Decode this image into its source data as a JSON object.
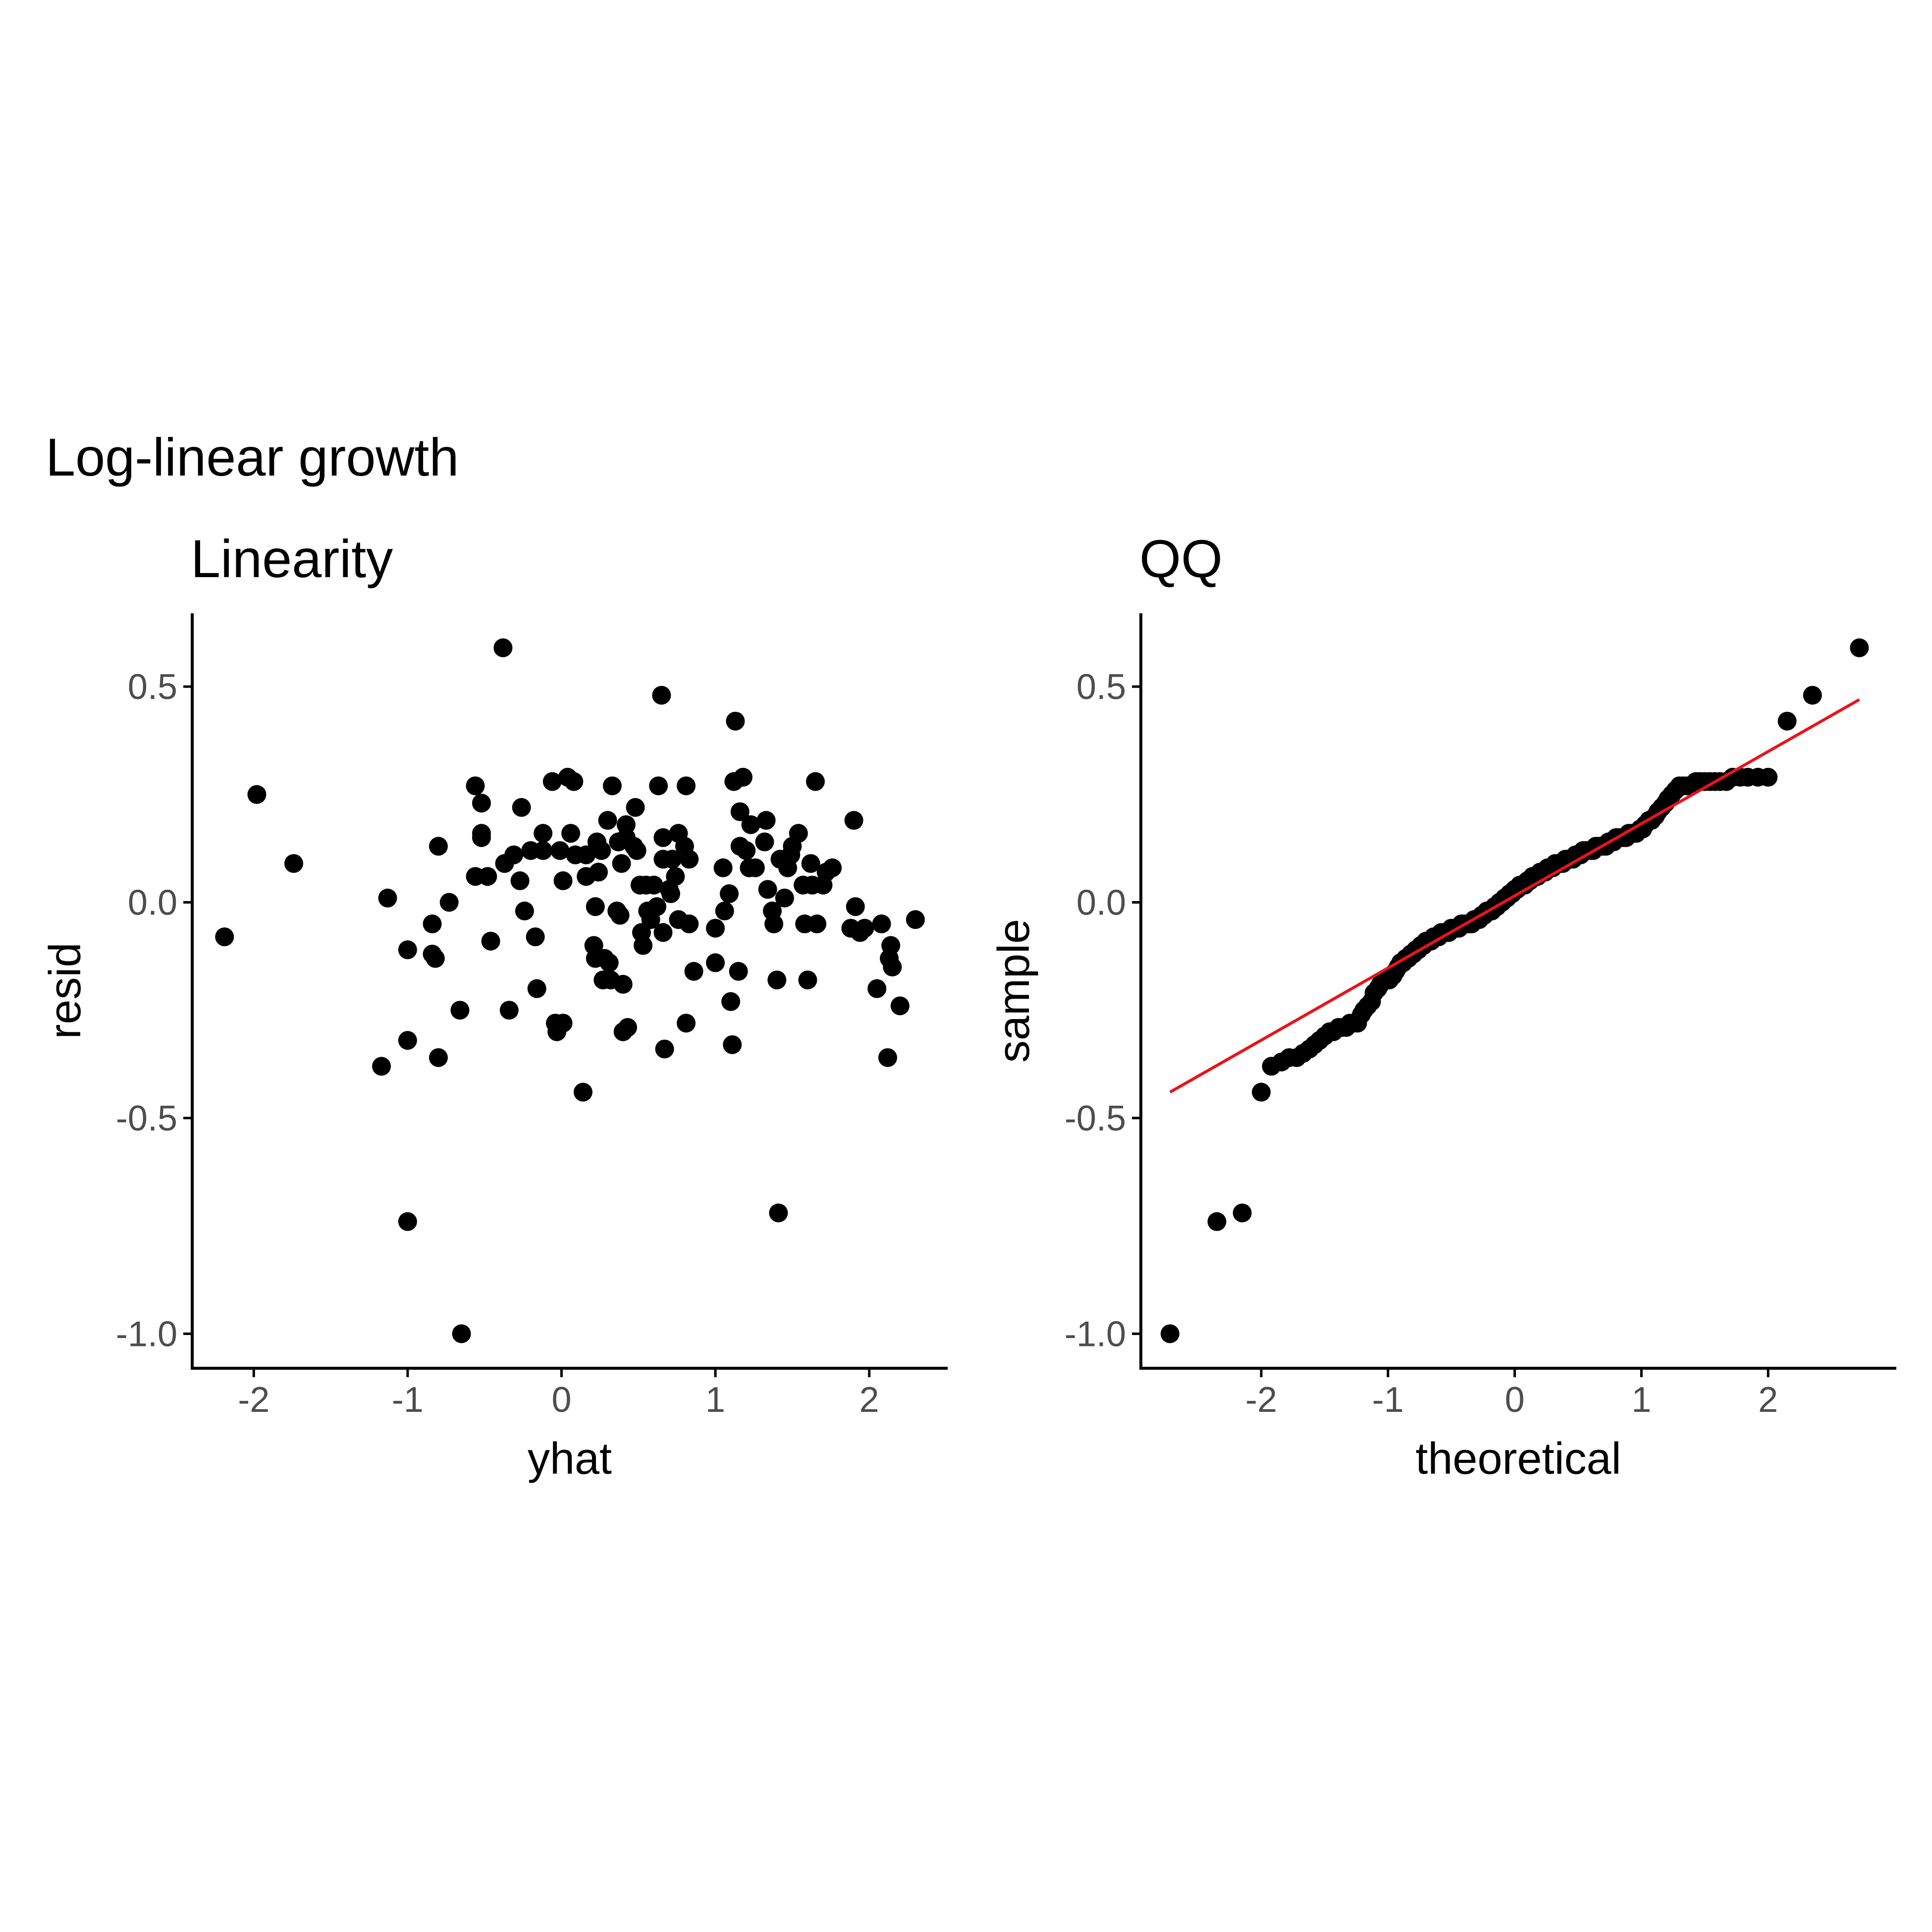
{
  "title": "Log-linear growth",
  "chart_data": [
    {
      "type": "scatter",
      "title": "Linearity",
      "xlabel": "yhat",
      "ylabel": "resid",
      "xlim": [
        -2.4,
        2.5
      ],
      "ylim": [
        -1.08,
        0.67
      ],
      "xticks": [
        "-2",
        "-1",
        "0",
        "1",
        "2"
      ],
      "yticks": [
        "-1.0",
        "-0.5",
        "0.0",
        "0.5"
      ],
      "point_color": "#000000",
      "points": [
        [
          -2.19,
          -0.08
        ],
        [
          -1.98,
          0.25
        ],
        [
          -1.74,
          0.09
        ],
        [
          -1.17,
          -0.38
        ],
        [
          -1.13,
          0.01
        ],
        [
          -1.0,
          -0.32
        ],
        [
          -1.0,
          -0.11
        ],
        [
          -1.0,
          -0.74
        ],
        [
          -0.84,
          -0.05
        ],
        [
          -0.84,
          -0.12
        ],
        [
          -0.82,
          -0.13
        ],
        [
          -0.8,
          -0.36
        ],
        [
          -0.8,
          0.13
        ],
        [
          -0.73,
          0.0
        ],
        [
          -0.66,
          -0.25
        ],
        [
          -0.65,
          -1.0
        ],
        [
          -0.56,
          0.06
        ],
        [
          -0.56,
          0.27
        ],
        [
          -0.52,
          0.23
        ],
        [
          -0.52,
          0.16
        ],
        [
          -0.52,
          0.15
        ],
        [
          -0.48,
          0.06
        ],
        [
          -0.46,
          -0.09
        ],
        [
          -0.38,
          0.59
        ],
        [
          -0.37,
          0.09
        ],
        [
          -0.34,
          -0.25
        ],
        [
          -0.31,
          0.11
        ],
        [
          -0.27,
          0.05
        ],
        [
          -0.26,
          0.22
        ],
        [
          -0.24,
          -0.02
        ],
        [
          -0.2,
          0.12
        ],
        [
          -0.17,
          -0.08
        ],
        [
          -0.16,
          -0.2
        ],
        [
          -0.12,
          0.16
        ],
        [
          -0.12,
          0.12
        ],
        [
          -0.06,
          0.28
        ],
        [
          -0.04,
          -0.28
        ],
        [
          -0.03,
          -0.3
        ],
        [
          -0.01,
          0.12
        ],
        [
          0.01,
          0.05
        ],
        [
          0.01,
          -0.28
        ],
        [
          0.04,
          0.29
        ],
        [
          0.06,
          0.16
        ],
        [
          0.08,
          0.28
        ],
        [
          0.09,
          0.11
        ],
        [
          0.14,
          -0.44
        ],
        [
          0.16,
          0.11
        ],
        [
          0.16,
          0.06
        ],
        [
          0.21,
          -0.1
        ],
        [
          0.22,
          -0.13
        ],
        [
          0.22,
          -0.01
        ],
        [
          0.23,
          0.14
        ],
        [
          0.24,
          0.07
        ],
        [
          0.26,
          0.12
        ],
        [
          0.27,
          -0.18
        ],
        [
          0.28,
          -0.13
        ],
        [
          0.3,
          0.19
        ],
        [
          0.31,
          -0.14
        ],
        [
          0.32,
          -0.18
        ],
        [
          0.33,
          0.27
        ],
        [
          0.36,
          -0.02
        ],
        [
          0.37,
          0.14
        ],
        [
          0.38,
          -0.03
        ],
        [
          0.38,
          -0.03
        ],
        [
          0.39,
          0.09
        ],
        [
          0.4,
          -0.3
        ],
        [
          0.4,
          -0.19
        ],
        [
          0.42,
          0.15
        ],
        [
          0.42,
          0.18
        ],
        [
          0.43,
          -0.29
        ],
        [
          0.47,
          0.13
        ],
        [
          0.48,
          0.22
        ],
        [
          0.49,
          0.12
        ],
        [
          0.51,
          0.04
        ],
        [
          0.52,
          -0.07
        ],
        [
          0.53,
          -0.1
        ],
        [
          0.55,
          0.04
        ],
        [
          0.56,
          -0.02
        ],
        [
          0.57,
          -0.02
        ],
        [
          0.58,
          -0.04
        ],
        [
          0.6,
          0.04
        ],
        [
          0.62,
          -0.01
        ],
        [
          0.63,
          0.27
        ],
        [
          0.65,
          0.48
        ],
        [
          0.66,
          0.1
        ],
        [
          0.66,
          0.15
        ],
        [
          0.66,
          -0.07
        ],
        [
          0.67,
          -0.34
        ],
        [
          0.7,
          0.03
        ],
        [
          0.71,
          0.02
        ],
        [
          0.72,
          0.1
        ],
        [
          0.74,
          0.06
        ],
        [
          0.76,
          -0.04
        ],
        [
          0.76,
          0.16
        ],
        [
          0.8,
          0.13
        ],
        [
          0.81,
          0.27
        ],
        [
          0.81,
          -0.28
        ],
        [
          0.83,
          -0.05
        ],
        [
          0.83,
          0.1
        ],
        [
          0.86,
          -0.16
        ],
        [
          1.0,
          -0.14
        ],
        [
          1.0,
          -0.06
        ],
        [
          1.05,
          0.08
        ],
        [
          1.06,
          -0.02
        ],
        [
          1.09,
          0.02
        ],
        [
          1.1,
          -0.23
        ],
        [
          1.11,
          -0.33
        ],
        [
          1.12,
          0.28
        ],
        [
          1.13,
          0.42
        ],
        [
          1.15,
          -0.16
        ],
        [
          1.16,
          0.21
        ],
        [
          1.16,
          0.13
        ],
        [
          1.18,
          0.29
        ],
        [
          1.2,
          0.12
        ],
        [
          1.22,
          0.08
        ],
        [
          1.23,
          0.18
        ],
        [
          1.26,
          0.08
        ],
        [
          1.32,
          0.14
        ],
        [
          1.33,
          0.19
        ],
        [
          1.34,
          0.03
        ],
        [
          1.37,
          -0.02
        ],
        [
          1.38,
          -0.05
        ],
        [
          1.4,
          -0.18
        ],
        [
          1.41,
          -0.72
        ],
        [
          1.42,
          0.1
        ],
        [
          1.45,
          0.01
        ],
        [
          1.47,
          0.08
        ],
        [
          1.49,
          0.11
        ],
        [
          1.5,
          0.13
        ],
        [
          1.54,
          0.16
        ],
        [
          1.57,
          0.04
        ],
        [
          1.58,
          -0.05
        ],
        [
          1.6,
          -0.18
        ],
        [
          1.62,
          0.09
        ],
        [
          1.63,
          0.04
        ],
        [
          1.65,
          0.28
        ],
        [
          1.66,
          -0.05
        ],
        [
          1.7,
          0.04
        ],
        [
          1.72,
          0.07
        ],
        [
          1.76,
          0.08
        ],
        [
          1.88,
          -0.06
        ],
        [
          1.9,
          0.19
        ],
        [
          1.91,
          -0.01
        ],
        [
          1.94,
          -0.07
        ],
        [
          1.97,
          -0.06
        ],
        [
          2.05,
          -0.2
        ],
        [
          2.08,
          -0.05
        ],
        [
          2.12,
          -0.36
        ],
        [
          2.13,
          -0.13
        ],
        [
          2.14,
          -0.1
        ],
        [
          2.15,
          -0.15
        ],
        [
          2.2,
          -0.24
        ],
        [
          2.3,
          -0.04
        ]
      ]
    },
    {
      "type": "scatter",
      "title": "QQ",
      "xlabel": "theoretical",
      "ylabel": "sample",
      "xlim": [
        -2.95,
        3.0
      ],
      "ylim": [
        -1.08,
        0.67
      ],
      "xticks": [
        "-2",
        "-1",
        "0",
        "1",
        "2"
      ],
      "yticks": [
        "-1.0",
        "-0.5",
        "0.0",
        "0.5"
      ],
      "point_color": "#000000",
      "line_color": "#e8141b",
      "reference_line": [
        [
          -2.72,
          -0.44
        ],
        [
          2.72,
          0.47
        ]
      ],
      "points": [
        [
          -2.72,
          -1.0
        ],
        [
          -2.35,
          -0.74
        ],
        [
          -2.15,
          -0.72
        ],
        [
          -2.0,
          -0.44
        ],
        [
          -1.92,
          -0.38
        ],
        [
          -1.84,
          -0.37
        ],
        [
          -1.78,
          -0.36
        ],
        [
          -1.72,
          -0.36
        ],
        [
          -1.67,
          -0.35
        ],
        [
          -1.62,
          -0.34
        ],
        [
          -1.58,
          -0.33
        ],
        [
          -1.54,
          -0.32
        ],
        [
          -1.5,
          -0.31
        ],
        [
          -1.46,
          -0.3
        ],
        [
          -1.43,
          -0.3
        ],
        [
          -1.39,
          -0.29
        ],
        [
          -1.36,
          -0.29
        ],
        [
          -1.33,
          -0.29
        ],
        [
          -1.3,
          -0.28
        ],
        [
          -1.27,
          -0.28
        ],
        [
          -1.24,
          -0.28
        ],
        [
          -1.21,
          -0.26
        ],
        [
          -1.19,
          -0.25
        ],
        [
          -1.16,
          -0.24
        ],
        [
          -1.13,
          -0.23
        ],
        [
          -1.11,
          -0.21
        ],
        [
          -1.08,
          -0.2
        ],
        [
          -1.06,
          -0.19
        ],
        [
          -1.03,
          -0.18
        ],
        [
          -1.01,
          -0.18
        ],
        [
          -0.99,
          -0.18
        ],
        [
          -0.96,
          -0.17
        ],
        [
          -0.94,
          -0.16
        ],
        [
          -0.92,
          -0.15
        ],
        [
          -0.9,
          -0.14
        ],
        [
          -0.88,
          -0.14
        ],
        [
          -0.86,
          -0.13
        ],
        [
          -0.84,
          -0.13
        ],
        [
          -0.82,
          -0.12
        ],
        [
          -0.8,
          -0.12
        ],
        [
          -0.78,
          -0.11
        ],
        [
          -0.76,
          -0.11
        ],
        [
          -0.74,
          -0.1
        ],
        [
          -0.72,
          -0.1
        ],
        [
          -0.7,
          -0.09
        ],
        [
          -0.68,
          -0.09
        ],
        [
          -0.66,
          -0.09
        ],
        [
          -0.64,
          -0.08
        ],
        [
          -0.62,
          -0.08
        ],
        [
          -0.6,
          -0.08
        ],
        [
          -0.58,
          -0.07
        ],
        [
          -0.56,
          -0.07
        ],
        [
          -0.54,
          -0.07
        ],
        [
          -0.52,
          -0.07
        ],
        [
          -0.5,
          -0.06
        ],
        [
          -0.48,
          -0.06
        ],
        [
          -0.46,
          -0.06
        ],
        [
          -0.44,
          -0.06
        ],
        [
          -0.42,
          -0.05
        ],
        [
          -0.4,
          -0.05
        ],
        [
          -0.38,
          -0.05
        ],
        [
          -0.36,
          -0.05
        ],
        [
          -0.34,
          -0.05
        ],
        [
          -0.32,
          -0.04
        ],
        [
          -0.3,
          -0.04
        ],
        [
          -0.28,
          -0.04
        ],
        [
          -0.26,
          -0.03
        ],
        [
          -0.24,
          -0.03
        ],
        [
          -0.22,
          -0.02
        ],
        [
          -0.2,
          -0.02
        ],
        [
          -0.18,
          -0.02
        ],
        [
          -0.16,
          -0.01
        ],
        [
          -0.14,
          -0.01
        ],
        [
          -0.12,
          0.0
        ],
        [
          -0.1,
          0.0
        ],
        [
          -0.08,
          0.01
        ],
        [
          -0.06,
          0.01
        ],
        [
          -0.04,
          0.02
        ],
        [
          -0.02,
          0.02
        ],
        [
          0.0,
          0.03
        ],
        [
          0.02,
          0.03
        ],
        [
          0.04,
          0.04
        ],
        [
          0.06,
          0.04
        ],
        [
          0.08,
          0.04
        ],
        [
          0.1,
          0.05
        ],
        [
          0.12,
          0.05
        ],
        [
          0.14,
          0.06
        ],
        [
          0.16,
          0.06
        ],
        [
          0.18,
          0.06
        ],
        [
          0.2,
          0.07
        ],
        [
          0.22,
          0.07
        ],
        [
          0.24,
          0.07
        ],
        [
          0.26,
          0.08
        ],
        [
          0.28,
          0.08
        ],
        [
          0.3,
          0.08
        ],
        [
          0.32,
          0.09
        ],
        [
          0.34,
          0.09
        ],
        [
          0.36,
          0.09
        ],
        [
          0.38,
          0.09
        ],
        [
          0.4,
          0.1
        ],
        [
          0.42,
          0.1
        ],
        [
          0.44,
          0.1
        ],
        [
          0.46,
          0.1
        ],
        [
          0.48,
          0.11
        ],
        [
          0.5,
          0.11
        ],
        [
          0.52,
          0.11
        ],
        [
          0.54,
          0.12
        ],
        [
          0.56,
          0.12
        ],
        [
          0.58,
          0.12
        ],
        [
          0.6,
          0.12
        ],
        [
          0.62,
          0.12
        ],
        [
          0.64,
          0.13
        ],
        [
          0.66,
          0.13
        ],
        [
          0.68,
          0.13
        ],
        [
          0.7,
          0.13
        ],
        [
          0.72,
          0.13
        ],
        [
          0.74,
          0.14
        ],
        [
          0.76,
          0.14
        ],
        [
          0.78,
          0.14
        ],
        [
          0.8,
          0.15
        ],
        [
          0.82,
          0.15
        ],
        [
          0.84,
          0.15
        ],
        [
          0.86,
          0.15
        ],
        [
          0.88,
          0.15
        ],
        [
          0.9,
          0.16
        ],
        [
          0.92,
          0.16
        ],
        [
          0.94,
          0.16
        ],
        [
          0.96,
          0.16
        ],
        [
          0.99,
          0.17
        ],
        [
          1.01,
          0.17
        ],
        [
          1.03,
          0.18
        ],
        [
          1.06,
          0.19
        ],
        [
          1.08,
          0.19
        ],
        [
          1.11,
          0.2
        ],
        [
          1.13,
          0.21
        ],
        [
          1.16,
          0.22
        ],
        [
          1.19,
          0.23
        ],
        [
          1.21,
          0.24
        ],
        [
          1.24,
          0.25
        ],
        [
          1.27,
          0.26
        ],
        [
          1.3,
          0.27
        ],
        [
          1.33,
          0.27
        ],
        [
          1.36,
          0.27
        ],
        [
          1.39,
          0.27
        ],
        [
          1.43,
          0.28
        ],
        [
          1.46,
          0.28
        ],
        [
          1.5,
          0.28
        ],
        [
          1.54,
          0.28
        ],
        [
          1.58,
          0.28
        ],
        [
          1.62,
          0.28
        ],
        [
          1.67,
          0.28
        ],
        [
          1.72,
          0.29
        ],
        [
          1.78,
          0.29
        ],
        [
          1.84,
          0.29
        ],
        [
          1.92,
          0.29
        ],
        [
          2.0,
          0.29
        ],
        [
          2.15,
          0.42
        ],
        [
          2.35,
          0.48
        ],
        [
          2.72,
          0.59
        ]
      ]
    }
  ]
}
